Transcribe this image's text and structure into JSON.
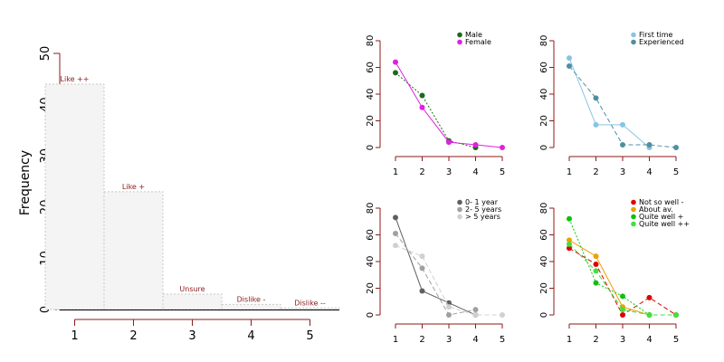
{
  "chart_data": [
    {
      "type": "bar",
      "ylabel": "Frequency",
      "xlim": [
        0.5,
        5.5
      ],
      "ylim": [
        0,
        50
      ],
      "x_ticks": [
        "1",
        "2",
        "3",
        "4",
        "5"
      ],
      "y_ticks": [
        "0",
        "10",
        "20",
        "30",
        "40",
        "50"
      ],
      "categories": [
        "1",
        "2",
        "3",
        "4",
        "5"
      ],
      "values": [
        44,
        23,
        3,
        1,
        0.3
      ],
      "bar_labels": [
        "Like ++",
        "Like +",
        "Unsure",
        "Dislike -",
        "Dislike --"
      ],
      "bar_fill": "#f4f4f4",
      "bar_border": "#c8c8c8",
      "label_color": "#8b1a1a",
      "axis_color": "#8b1a1a"
    },
    {
      "type": "line",
      "x": [
        1,
        2,
        3,
        4,
        5
      ],
      "xlim": [
        1,
        5
      ],
      "ylim": [
        0,
        80
      ],
      "x_ticks": [
        "1",
        "2",
        "3",
        "4",
        "5"
      ],
      "y_ticks": [
        "0",
        "20",
        "40",
        "60",
        "80"
      ],
      "legend_position": "top-right",
      "series": [
        {
          "name": "Male",
          "values": [
            56,
            39,
            5,
            0,
            null
          ],
          "color": "#1a6b1a",
          "dash": "dotted"
        },
        {
          "name": "Female",
          "values": [
            64,
            30,
            4,
            2,
            0
          ],
          "color": "#e020e0",
          "dash": "solid"
        }
      ]
    },
    {
      "type": "line",
      "x": [
        1,
        2,
        3,
        4,
        5
      ],
      "xlim": [
        1,
        5
      ],
      "ylim": [
        0,
        80
      ],
      "x_ticks": [
        "1",
        "2",
        "3",
        "4",
        "5"
      ],
      "y_ticks": [
        "0",
        "20",
        "40",
        "60",
        "80"
      ],
      "legend_position": "top-right",
      "series": [
        {
          "name": "First time",
          "values": [
            67,
            17,
            17,
            0,
            null
          ],
          "color": "#87c4e6",
          "dash": "solid"
        },
        {
          "name": "Experienced",
          "values": [
            61,
            37,
            2,
            2,
            0
          ],
          "color": "#4f8fa0",
          "dash": "dashed"
        }
      ]
    },
    {
      "type": "line",
      "x": [
        1,
        2,
        3,
        4,
        5
      ],
      "xlim": [
        1,
        5
      ],
      "ylim": [
        0,
        80
      ],
      "x_ticks": [
        "1",
        "2",
        "3",
        "4",
        "5"
      ],
      "y_ticks": [
        "0",
        "20",
        "40",
        "60",
        "80"
      ],
      "legend_position": "top-right",
      "series": [
        {
          "name": "0- 1 year",
          "values": [
            73,
            18,
            9,
            0,
            null
          ],
          "color": "#606060",
          "dash": "solid"
        },
        {
          "name": "2- 5 years",
          "values": [
            61,
            35,
            0,
            4,
            null
          ],
          "color": "#a0a0a0",
          "dash": "dashed"
        },
        {
          "name": "> 5 years",
          "values": [
            52,
            44,
            6,
            0,
            0
          ],
          "color": "#d0d0d0",
          "dash": "dashed"
        }
      ]
    },
    {
      "type": "line",
      "x": [
        1,
        2,
        3,
        4,
        5
      ],
      "xlim": [
        1,
        5
      ],
      "ylim": [
        0,
        80
      ],
      "x_ticks": [
        "1",
        "2",
        "3",
        "4",
        "5"
      ],
      "y_ticks": [
        "0",
        "20",
        "40",
        "60",
        "80"
      ],
      "legend_position": "top-right",
      "series": [
        {
          "name": "Not so well -",
          "values": [
            50,
            38,
            0,
            13,
            0
          ],
          "color": "#e00000",
          "dash": "dashed"
        },
        {
          "name": "About av.",
          "values": [
            56,
            44,
            6,
            0,
            null
          ],
          "color": "#f0a000",
          "dash": "solid"
        },
        {
          "name": "Quite well +",
          "values": [
            72,
            24,
            14,
            0,
            null
          ],
          "color": "#10c010",
          "dash": "dotted"
        },
        {
          "name": "Quite well ++",
          "values": [
            53,
            33,
            4,
            0,
            0
          ],
          "color": "#40e040",
          "dash": "dashed"
        }
      ]
    }
  ]
}
